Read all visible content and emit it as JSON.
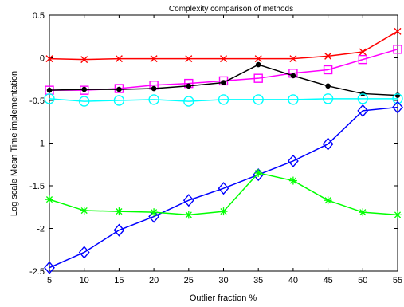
{
  "chart_data": {
    "type": "line",
    "title": "Complexity comparison of methods",
    "xlabel": "Outlier fraction %",
    "ylabel": "Log scale Mean Time implementation",
    "xlim": [
      5,
      55
    ],
    "ylim": [
      -2.5,
      0.5
    ],
    "xticks": [
      5,
      10,
      15,
      20,
      25,
      30,
      35,
      40,
      45,
      50,
      55
    ],
    "yticks": [
      0.5,
      0,
      -0.5,
      -1,
      -1.5,
      -2,
      -2.5
    ],
    "ytick_labels": [
      "0.5",
      "0",
      "-0.5",
      "-1",
      "-1.5",
      "-2",
      "-2.5"
    ],
    "grid": false,
    "x": [
      5,
      10,
      15,
      20,
      25,
      30,
      35,
      40,
      45,
      50,
      55
    ],
    "series": [
      {
        "color": "#ff0000",
        "marker": "x",
        "values": [
          -0.01,
          -0.02,
          -0.01,
          -0.01,
          -0.01,
          -0.01,
          -0.01,
          -0.01,
          0.02,
          0.07,
          0.31
        ]
      },
      {
        "color": "#ff00ff",
        "marker": "square",
        "values": [
          -0.38,
          -0.38,
          -0.36,
          -0.32,
          -0.3,
          -0.27,
          -0.24,
          -0.18,
          -0.14,
          -0.02,
          0.1
        ]
      },
      {
        "color": "#000000",
        "marker": "dot",
        "values": [
          -0.38,
          -0.37,
          -0.37,
          -0.36,
          -0.33,
          -0.29,
          -0.08,
          -0.21,
          -0.33,
          -0.42,
          -0.44
        ]
      },
      {
        "color": "#00ffff",
        "marker": "circle",
        "values": [
          -0.48,
          -0.51,
          -0.5,
          -0.49,
          -0.51,
          -0.49,
          -0.49,
          -0.49,
          -0.48,
          -0.48,
          -0.48
        ]
      },
      {
        "color": "#0000ff",
        "marker": "diamond",
        "values": [
          -2.46,
          -2.28,
          -2.02,
          -1.86,
          -1.67,
          -1.53,
          -1.37,
          -1.21,
          -1.01,
          -0.62,
          -0.58
        ]
      },
      {
        "color": "#00ff00",
        "marker": "asterisk",
        "values": [
          -1.66,
          -1.79,
          -1.8,
          -1.81,
          -1.84,
          -1.8,
          -1.35,
          -1.44,
          -1.67,
          -1.81,
          -1.84
        ]
      }
    ]
  }
}
